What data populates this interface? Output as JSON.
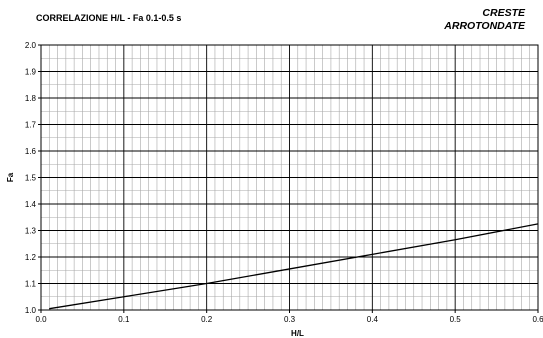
{
  "chart_data": {
    "type": "line",
    "title": "CORRELAZIONE H/L - Fa 0.1-0.5 s",
    "subtitle": [
      "CRESTE",
      "ARROTONDATE"
    ],
    "xlabel": "H/L",
    "ylabel": "Fa",
    "xlim": [
      0.0,
      0.6
    ],
    "ylim": [
      1.0,
      2.0
    ],
    "x_ticks": [
      "0.0",
      "0.1",
      "0.2",
      "0.3",
      "0.4",
      "0.5",
      "0.6"
    ],
    "y_ticks": [
      "1.0",
      "1.1",
      "1.2",
      "1.3",
      "1.4",
      "1.5",
      "1.6",
      "1.7",
      "1.8",
      "1.9",
      "2.0"
    ],
    "grid": true,
    "series": [
      {
        "x": [
          0.01,
          0.1,
          0.2,
          0.3,
          0.4,
          0.5,
          0.6
        ],
        "y": [
          1.005,
          1.05,
          1.1,
          1.155,
          1.21,
          1.265,
          1.325
        ]
      }
    ],
    "colors": {
      "line": "#000000",
      "minor_grid": "#a8a8a8",
      "major_grid": "#000000",
      "background": "#ffffff"
    }
  }
}
